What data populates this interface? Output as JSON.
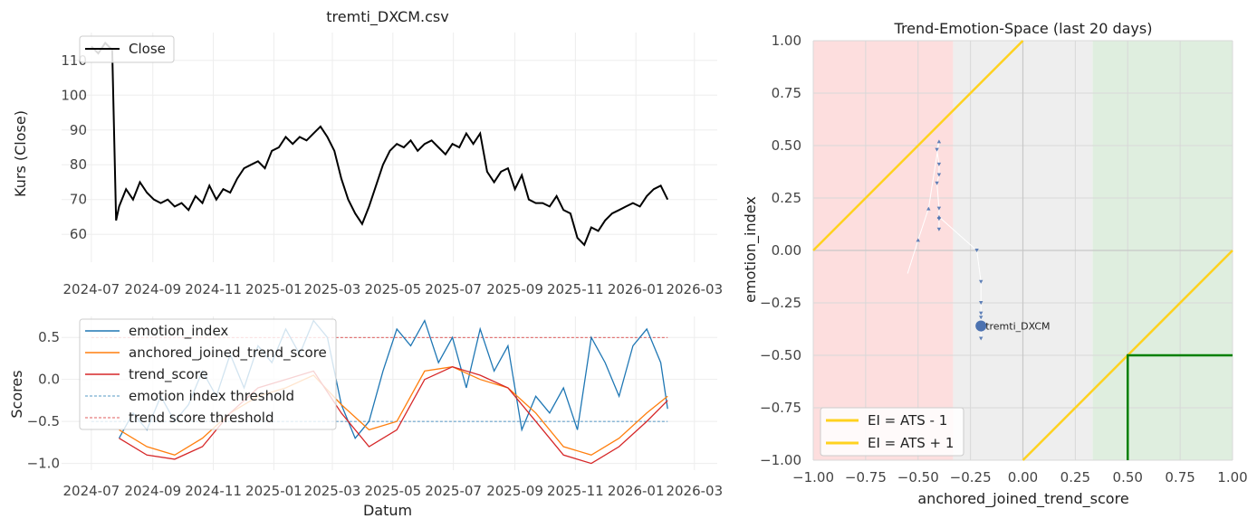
{
  "colors": {
    "close": "#000000",
    "emotion": "#1f77b4",
    "anchored": "#ff7f0e",
    "trend": "#d62728",
    "threshold_blue": "#1f77b4",
    "threshold_red": "#d62728",
    "zone_red": "#fddede",
    "zone_gray": "#eeeeee",
    "zone_green": "#dfeedf",
    "gold": "#ffd21f",
    "green_box": "#008000",
    "point": "#4c72b0"
  },
  "chart_data": [
    {
      "type": "line",
      "title": "tremti_DXCM.csv",
      "xlabel": "",
      "ylabel": "Kurs (Close)",
      "ylim": [
        52,
        118
      ],
      "y_ticks": [
        "60",
        "70",
        "80",
        "90",
        "100",
        "110"
      ],
      "x_ticks": [
        "2024-07",
        "2024-09",
        "2024-11",
        "2025-01",
        "2025-03",
        "2025-05",
        "2025-07",
        "2025-09",
        "2025-11",
        "2026-01",
        "2026-03"
      ],
      "legend": {
        "placement": "upper-left",
        "entries": [
          "Close"
        ]
      },
      "grid": true,
      "series": [
        {
          "name": "Close",
          "x": [
            "2024-07-01",
            "2024-07-08",
            "2024-07-15",
            "2024-07-22",
            "2024-07-26",
            "2024-07-29",
            "2024-08-05",
            "2024-08-12",
            "2024-08-19",
            "2024-08-26",
            "2024-09-02",
            "2024-09-09",
            "2024-09-16",
            "2024-09-23",
            "2024-09-30",
            "2024-10-07",
            "2024-10-14",
            "2024-10-21",
            "2024-10-28",
            "2024-11-04",
            "2024-11-11",
            "2024-11-18",
            "2024-11-25",
            "2024-12-02",
            "2024-12-09",
            "2024-12-16",
            "2024-12-23",
            "2024-12-30",
            "2025-01-06",
            "2025-01-13",
            "2025-01-20",
            "2025-01-27",
            "2025-02-03",
            "2025-02-10",
            "2025-02-17",
            "2025-02-24",
            "2025-03-03",
            "2025-03-10",
            "2025-03-17",
            "2025-03-24",
            "2025-03-31",
            "2025-04-07",
            "2025-04-14",
            "2025-04-21",
            "2025-04-28",
            "2025-05-05",
            "2025-05-12",
            "2025-05-19",
            "2025-05-26",
            "2025-06-02",
            "2025-06-09",
            "2025-06-16",
            "2025-06-23",
            "2025-06-30",
            "2025-07-07",
            "2025-07-14",
            "2025-07-21",
            "2025-07-28",
            "2025-08-04",
            "2025-08-11",
            "2025-08-18",
            "2025-08-25",
            "2025-09-01",
            "2025-09-08",
            "2025-09-15",
            "2025-09-22",
            "2025-09-29",
            "2025-10-06",
            "2025-10-13",
            "2025-10-20",
            "2025-10-27",
            "2025-11-03",
            "2025-11-10",
            "2025-11-17",
            "2025-11-24",
            "2025-12-01",
            "2025-12-08",
            "2025-12-15",
            "2025-12-22",
            "2025-12-29",
            "2026-01-05",
            "2026-01-12",
            "2026-01-19",
            "2026-01-26",
            "2026-02-02"
          ],
          "values": [
            114,
            112,
            115,
            113,
            64,
            68,
            73,
            70,
            75,
            72,
            70,
            69,
            70,
            68,
            69,
            67,
            71,
            69,
            74,
            70,
            73,
            72,
            76,
            79,
            80,
            81,
            79,
            84,
            85,
            88,
            86,
            88,
            87,
            89,
            91,
            88,
            84,
            76,
            70,
            66,
            63,
            68,
            74,
            80,
            84,
            86,
            85,
            87,
            84,
            86,
            87,
            85,
            83,
            86,
            85,
            89,
            86,
            89,
            78,
            75,
            78,
            79,
            73,
            77,
            70,
            69,
            69,
            68,
            71,
            67,
            66,
            59,
            57,
            62,
            61,
            64,
            66,
            67,
            68,
            69,
            68,
            71,
            73,
            74,
            70
          ]
        }
      ]
    },
    {
      "type": "line",
      "title": "",
      "xlabel": "Datum",
      "ylabel": "Scores",
      "ylim": [
        -1.08,
        0.75
      ],
      "y_ticks": [
        "0.5",
        "0.0",
        "−0.5",
        "−1.0"
      ],
      "x_ticks": [
        "2024-07",
        "2024-09",
        "2024-11",
        "2025-01",
        "2025-03",
        "2025-05",
        "2025-07",
        "2025-09",
        "2025-11",
        "2026-01",
        "2026-03"
      ],
      "legend": {
        "placement": "upper-left",
        "entries": [
          "emotion_index",
          "anchored_joined_trend_score",
          "trend_score",
          "emotion index threshold",
          "trend score threshold"
        ]
      },
      "grid": true,
      "thresholds": [
        {
          "name": "emotion index threshold",
          "value": -0.5,
          "x_range": [
            "2024-07-01",
            "2026-02-02"
          ]
        },
        {
          "name": "trend score threshold",
          "value": 0.5,
          "x_range": [
            "2024-07-01",
            "2026-02-02"
          ]
        }
      ],
      "series": [
        {
          "name": "emotion_index",
          "x": [
            "2024-07-29",
            "2024-08-12",
            "2024-08-26",
            "2024-09-09",
            "2024-09-23",
            "2024-10-07",
            "2024-10-21",
            "2024-11-04",
            "2024-11-18",
            "2024-12-02",
            "2024-12-16",
            "2024-12-30",
            "2025-01-13",
            "2025-01-27",
            "2025-02-10",
            "2025-02-24",
            "2025-03-10",
            "2025-03-24",
            "2025-04-07",
            "2025-04-21",
            "2025-05-05",
            "2025-05-19",
            "2025-06-02",
            "2025-06-16",
            "2025-06-30",
            "2025-07-14",
            "2025-07-28",
            "2025-08-11",
            "2025-08-25",
            "2025-09-08",
            "2025-09-22",
            "2025-10-06",
            "2025-10-20",
            "2025-11-03",
            "2025-11-17",
            "2025-12-01",
            "2025-12-15",
            "2025-12-29",
            "2026-01-12",
            "2026-01-26",
            "2026-02-02"
          ],
          "values": [
            -0.7,
            -0.4,
            -0.6,
            -0.2,
            -0.5,
            -0.3,
            0.1,
            -0.2,
            0.3,
            -0.1,
            0.4,
            0.2,
            0.6,
            0.3,
            0.7,
            0.5,
            -0.3,
            -0.7,
            -0.5,
            0.1,
            0.6,
            0.4,
            0.7,
            0.2,
            0.5,
            -0.1,
            0.6,
            0.1,
            0.4,
            -0.6,
            -0.2,
            -0.4,
            -0.1,
            -0.6,
            0.5,
            0.2,
            -0.2,
            0.4,
            0.6,
            0.2,
            -0.35
          ]
        },
        {
          "name": "anchored_joined_trend_score",
          "x": [
            "2024-07-29",
            "2024-08-26",
            "2024-09-23",
            "2024-10-21",
            "2024-11-18",
            "2024-12-16",
            "2025-01-13",
            "2025-02-10",
            "2025-03-10",
            "2025-04-07",
            "2025-05-05",
            "2025-06-02",
            "2025-06-30",
            "2025-07-28",
            "2025-08-25",
            "2025-09-22",
            "2025-10-20",
            "2025-11-17",
            "2025-12-15",
            "2026-01-12",
            "2026-02-02"
          ],
          "values": [
            -0.6,
            -0.8,
            -0.9,
            -0.7,
            -0.4,
            -0.2,
            -0.1,
            0.05,
            -0.3,
            -0.6,
            -0.5,
            0.1,
            0.15,
            0.0,
            -0.1,
            -0.4,
            -0.8,
            -0.9,
            -0.7,
            -0.4,
            -0.2
          ]
        },
        {
          "name": "trend_score",
          "x": [
            "2024-07-29",
            "2024-08-26",
            "2024-09-23",
            "2024-10-21",
            "2024-11-18",
            "2024-12-16",
            "2025-01-13",
            "2025-02-10",
            "2025-03-10",
            "2025-04-07",
            "2025-05-05",
            "2025-06-02",
            "2025-06-30",
            "2025-07-28",
            "2025-08-25",
            "2025-09-22",
            "2025-10-20",
            "2025-11-17",
            "2025-12-15",
            "2026-01-12",
            "2026-02-02"
          ],
          "values": [
            -0.7,
            -0.9,
            -0.95,
            -0.8,
            -0.4,
            -0.1,
            0.0,
            0.1,
            -0.4,
            -0.8,
            -0.6,
            0.0,
            0.15,
            0.05,
            -0.1,
            -0.5,
            -0.9,
            -1.0,
            -0.8,
            -0.5,
            -0.25
          ]
        }
      ]
    },
    {
      "type": "scatter",
      "title": "Trend-Emotion-Space (last 20 days)",
      "xlabel": "anchored_joined_trend_score",
      "ylabel": "emotion_index",
      "xlim": [
        -1,
        1
      ],
      "ylim": [
        -1,
        1
      ],
      "x_ticks": [
        "−1.00",
        "−0.75",
        "−0.50",
        "−0.25",
        "0.00",
        "0.25",
        "0.50",
        "0.75",
        "1.00"
      ],
      "y_ticks": [
        "1.00",
        "0.75",
        "0.50",
        "0.25",
        "0.00",
        "−0.25",
        "−0.50",
        "−0.75",
        "−1.00"
      ],
      "grid": true,
      "zones": [
        {
          "x_range": [
            -1,
            -0.333
          ],
          "color": "zone_red"
        },
        {
          "x_range": [
            -0.333,
            0.333
          ],
          "color": "zone_gray"
        },
        {
          "x_range": [
            0.333,
            1
          ],
          "color": "zone_green"
        }
      ],
      "lines": [
        {
          "name": "EI = ATS - 1",
          "slope": 1,
          "intercept": -1
        },
        {
          "name": "EI = ATS + 1",
          "slope": 1,
          "intercept": 1
        }
      ],
      "box": {
        "x_range": [
          0.5,
          1
        ],
        "y_range": [
          -1,
          -0.5
        ]
      },
      "legend": {
        "placement": "lower-left",
        "entries": [
          "EI = ATS - 1",
          "EI = ATS + 1"
        ]
      },
      "path": {
        "x": [
          -0.55,
          -0.5,
          -0.45,
          -0.4,
          -0.41,
          -0.4,
          -0.4,
          -0.41,
          -0.4,
          -0.4,
          -0.4,
          -0.4,
          -0.22,
          -0.2,
          -0.2,
          -0.2,
          -0.2,
          -0.2,
          -0.2,
          -0.2
        ],
        "y": [
          -0.11,
          0.05,
          0.2,
          0.52,
          0.48,
          0.41,
          0.36,
          0.32,
          0.2,
          0.15,
          0.1,
          0.16,
          0.0,
          -0.15,
          -0.25,
          -0.3,
          -0.32,
          -0.38,
          -0.42,
          -0.36
        ]
      },
      "last_point": {
        "label": "tremti_DXCM",
        "x": -0.2,
        "y": -0.36
      }
    }
  ]
}
